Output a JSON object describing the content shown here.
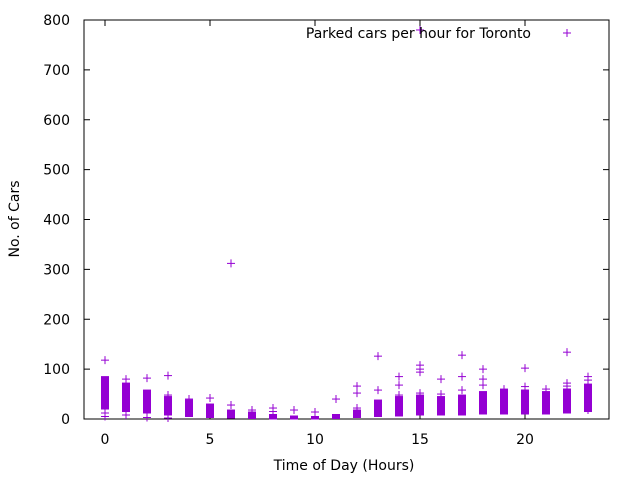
{
  "colors": {
    "series": "#9400d3",
    "axis": "#000000",
    "background": "#ffffff"
  },
  "chart_data": {
    "type": "scatter",
    "xlabel": "Time of Day (Hours)",
    "ylabel": "No. of Cars",
    "xlim": [
      -1,
      24
    ],
    "ylim": [
      0,
      800
    ],
    "x_ticks": [
      0,
      5,
      10,
      15,
      20
    ],
    "y_ticks": [
      0,
      100,
      200,
      300,
      400,
      500,
      600,
      700,
      800
    ],
    "grid": false,
    "legend_position": "top-right",
    "marker": "+",
    "series": [
      {
        "name": "Parked cars per hour for Toronto",
        "ranges": [
          {
            "x": 0,
            "min": 20,
            "max": 85
          },
          {
            "x": 1,
            "min": 15,
            "max": 72
          },
          {
            "x": 2,
            "min": 12,
            "max": 58
          },
          {
            "x": 3,
            "min": 8,
            "max": 45
          },
          {
            "x": 4,
            "min": 5,
            "max": 38
          },
          {
            "x": 5,
            "min": 3,
            "max": 30
          },
          {
            "x": 6,
            "min": 2,
            "max": 18
          },
          {
            "x": 7,
            "min": 1,
            "max": 14
          },
          {
            "x": 8,
            "min": 0,
            "max": 9
          },
          {
            "x": 9,
            "min": 0,
            "max": 6
          },
          {
            "x": 10,
            "min": 0,
            "max": 5
          },
          {
            "x": 11,
            "min": 1,
            "max": 9
          },
          {
            "x": 12,
            "min": 3,
            "max": 18
          },
          {
            "x": 13,
            "min": 5,
            "max": 38
          },
          {
            "x": 14,
            "min": 6,
            "max": 45
          },
          {
            "x": 15,
            "min": 8,
            "max": 48
          },
          {
            "x": 16,
            "min": 8,
            "max": 45
          },
          {
            "x": 17,
            "min": 8,
            "max": 48
          },
          {
            "x": 18,
            "min": 10,
            "max": 55
          },
          {
            "x": 19,
            "min": 10,
            "max": 58
          },
          {
            "x": 20,
            "min": 10,
            "max": 58
          },
          {
            "x": 21,
            "min": 10,
            "max": 55
          },
          {
            "x": 22,
            "min": 12,
            "max": 60
          },
          {
            "x": 23,
            "min": 15,
            "max": 70
          }
        ],
        "points": [
          {
            "x": 0,
            "y": 118
          },
          {
            "x": 0,
            "y": 5
          },
          {
            "x": 0,
            "y": 12
          },
          {
            "x": 1,
            "y": 80
          },
          {
            "x": 1,
            "y": 8
          },
          {
            "x": 2,
            "y": 82
          },
          {
            "x": 2,
            "y": 3
          },
          {
            "x": 3,
            "y": 87
          },
          {
            "x": 3,
            "y": 48
          },
          {
            "x": 3,
            "y": 2
          },
          {
            "x": 4,
            "y": 40
          },
          {
            "x": 5,
            "y": 42
          },
          {
            "x": 6,
            "y": 312
          },
          {
            "x": 6,
            "y": 28
          },
          {
            "x": 7,
            "y": 18
          },
          {
            "x": 8,
            "y": 22
          },
          {
            "x": 8,
            "y": 15
          },
          {
            "x": 9,
            "y": 18
          },
          {
            "x": 10,
            "y": 14
          },
          {
            "x": 11,
            "y": 40
          },
          {
            "x": 12,
            "y": 66
          },
          {
            "x": 12,
            "y": 52
          },
          {
            "x": 12,
            "y": 22
          },
          {
            "x": 13,
            "y": 126
          },
          {
            "x": 13,
            "y": 58
          },
          {
            "x": 14,
            "y": 85
          },
          {
            "x": 14,
            "y": 68
          },
          {
            "x": 14,
            "y": 48
          },
          {
            "x": 15,
            "y": 780
          },
          {
            "x": 15,
            "y": 108
          },
          {
            "x": 15,
            "y": 100
          },
          {
            "x": 15,
            "y": 94
          },
          {
            "x": 15,
            "y": 52
          },
          {
            "x": 16,
            "y": 80
          },
          {
            "x": 16,
            "y": 50
          },
          {
            "x": 17,
            "y": 128
          },
          {
            "x": 17,
            "y": 85
          },
          {
            "x": 17,
            "y": 58
          },
          {
            "x": 18,
            "y": 100
          },
          {
            "x": 18,
            "y": 80
          },
          {
            "x": 18,
            "y": 68
          },
          {
            "x": 19,
            "y": 60
          },
          {
            "x": 20,
            "y": 102
          },
          {
            "x": 20,
            "y": 65
          },
          {
            "x": 21,
            "y": 60
          },
          {
            "x": 22,
            "y": 134
          },
          {
            "x": 22,
            "y": 72
          },
          {
            "x": 22,
            "y": 66
          },
          {
            "x": 23,
            "y": 85
          },
          {
            "x": 23,
            "y": 78
          },
          {
            "x": 23,
            "y": 25
          },
          {
            "x": 23,
            "y": 18
          }
        ]
      }
    ]
  }
}
